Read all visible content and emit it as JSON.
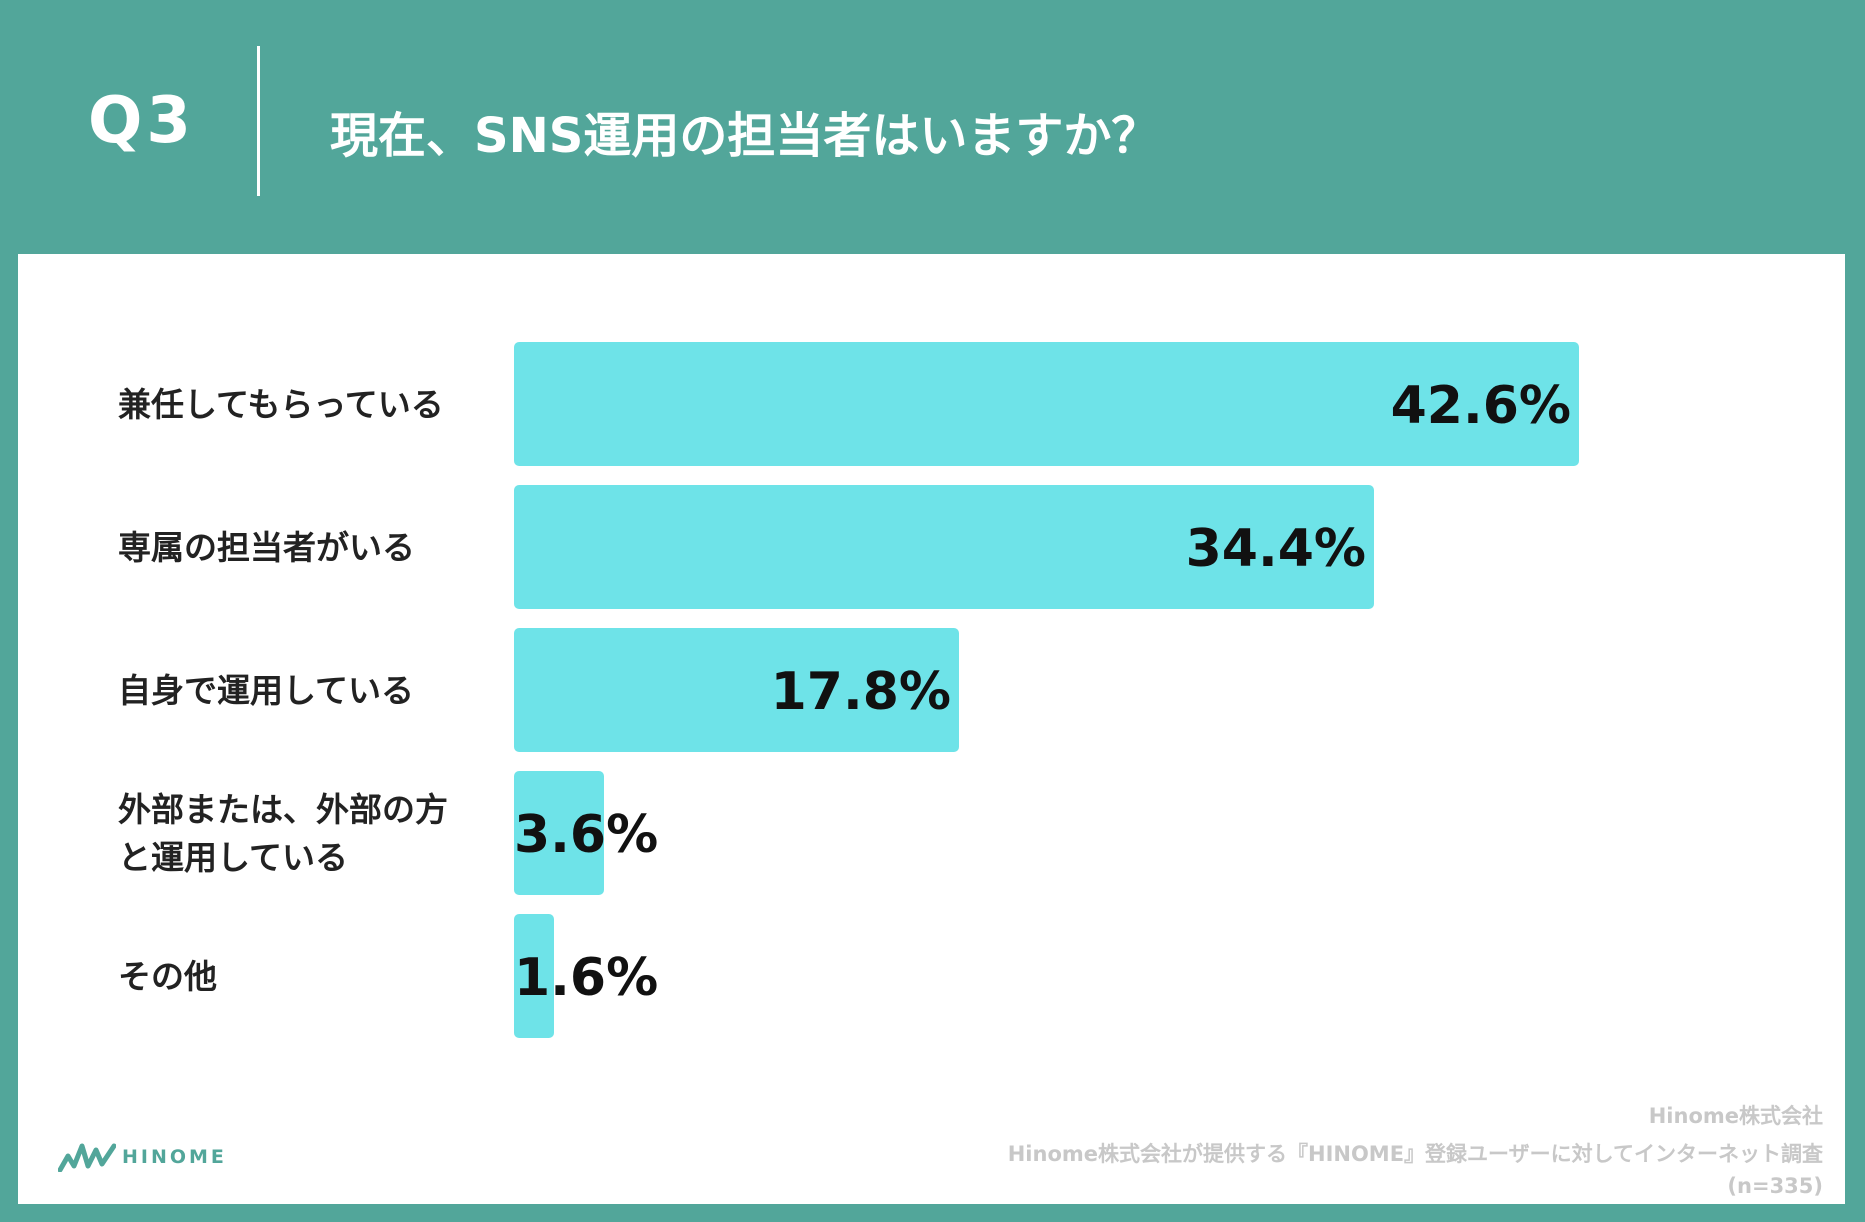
{
  "header": {
    "q_number": "Q3",
    "question": "現在、SNS運用の担当者はいますか？"
  },
  "chart_data": {
    "type": "bar",
    "orientation": "horizontal",
    "title": "現在、SNS運用の担当者はいますか？",
    "categories": [
      "兼任してもらっている",
      "専属の担当者がいる",
      "自身で運用している",
      "外部または、外部の方と運用している",
      "その他"
    ],
    "category_lines": [
      [
        "兼任してもらっている"
      ],
      [
        "専属の担当者がいる"
      ],
      [
        "自身で運用している"
      ],
      [
        "外部または、外部の方",
        "と運用している"
      ],
      [
        "その他"
      ]
    ],
    "values": [
      42.6,
      34.4,
      17.8,
      3.6,
      1.6
    ],
    "value_labels": [
      "42.6%",
      "34.4%",
      "17.8%",
      "3.6%",
      "1.6%"
    ],
    "unit": "%",
    "xlim": [
      0,
      60
    ],
    "bar_color": "#6ee3e8",
    "grid": false,
    "legend": "none"
  },
  "footer": {
    "company": "Hinome株式会社",
    "survey": "Hinome株式会社が提供する『HINOME』登録ユーザーに対してインターネット調査",
    "sample": "(n=335)",
    "logo_text": "HINOME"
  },
  "colors": {
    "background": "#52a69a",
    "panel": "#ffffff",
    "bar": "#6ee3e8",
    "footer_text": "#c8c8c8"
  }
}
